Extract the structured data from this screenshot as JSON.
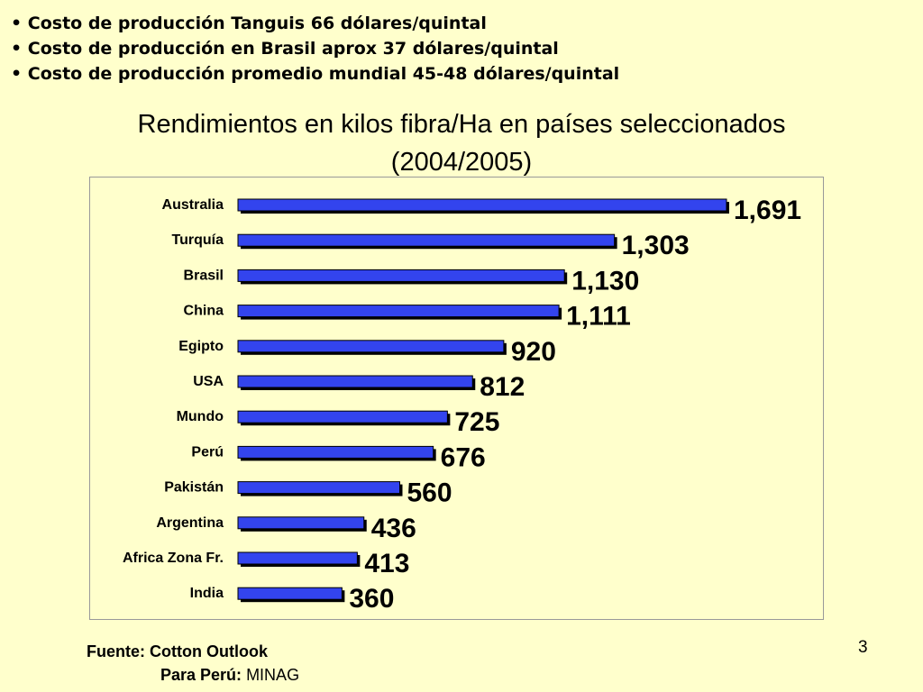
{
  "bullets": [
    "Costo de producción Tanguis 66 dólares/quintal",
    "Costo de producción en Brasil aprox 37 dólares/quintal",
    "Costo de producción promedio mundial 45-48 dólares/quintal"
  ],
  "chart_data": {
    "type": "bar",
    "orientation": "horizontal",
    "title": "Rendimientos en kilos fibra/Ha en países seleccionados",
    "subtitle": "(2004/2005)",
    "categories": [
      "Australia",
      "Turquía",
      "Brasil",
      "China",
      "Egipto",
      "USA",
      "Mundo",
      "Perú",
      "Pakistán",
      "Argentina",
      "Africa  Zona Fr.",
      "India"
    ],
    "values": [
      1691,
      1303,
      1130,
      1111,
      920,
      812,
      725,
      676,
      560,
      436,
      413,
      360
    ],
    "value_labels": [
      "1,691",
      "1,303",
      "1,130",
      "1,111",
      "920",
      "812",
      "725",
      "676",
      "560",
      "436",
      "413",
      "360"
    ],
    "xlim": [
      0,
      1691
    ],
    "grid": false,
    "legend": "none",
    "colors": {
      "bar": "#3344EE",
      "bar_shadow": "#000000",
      "background": "#FFFFCC"
    }
  },
  "source": {
    "line1": "Fuente: Cotton Outlook",
    "line2_label": "Para Perú:",
    "line2_value": "MINAG"
  },
  "page_number": "3"
}
